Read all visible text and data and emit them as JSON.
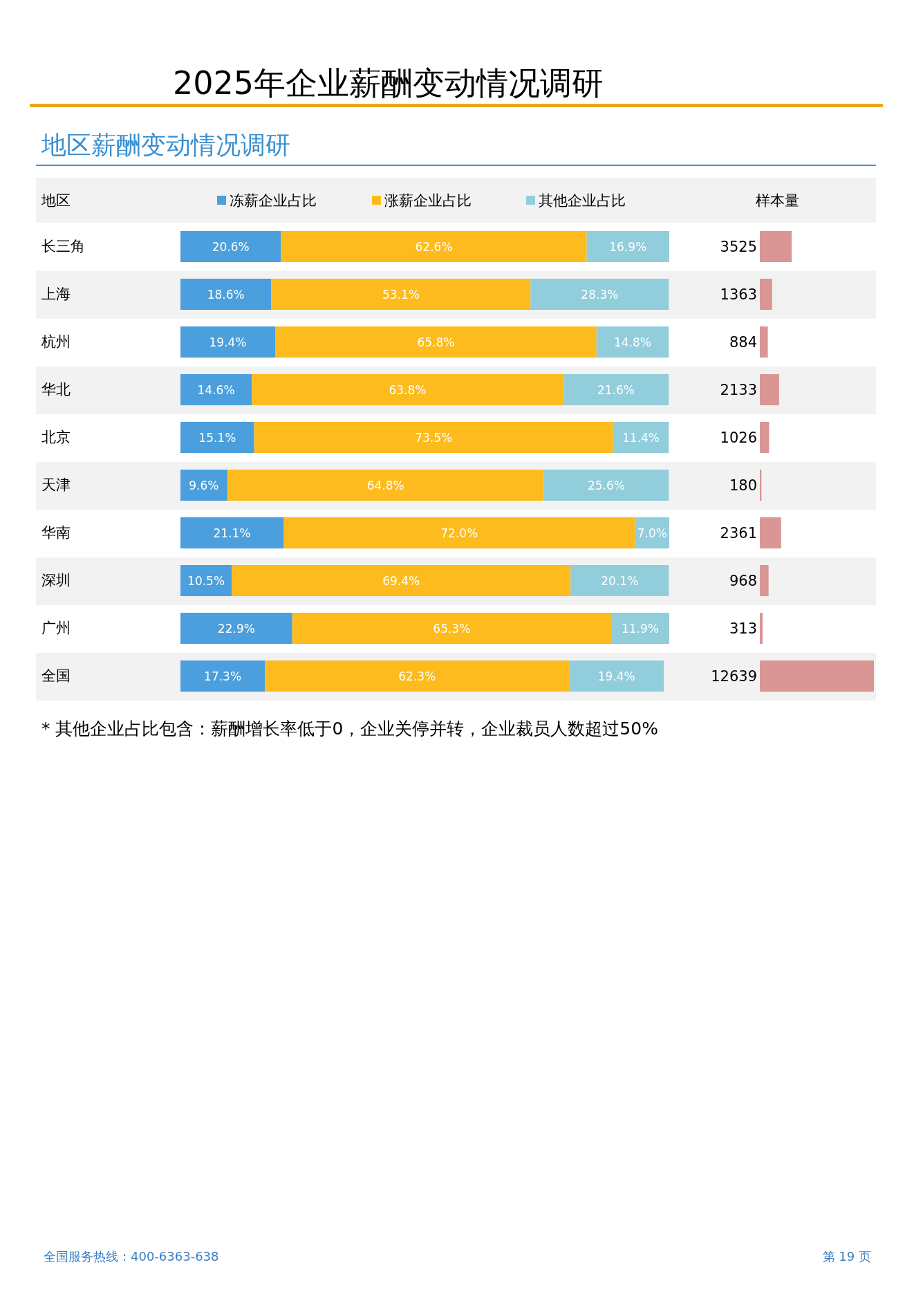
{
  "chart_data": [
    {
      "type": "bar",
      "orientation": "horizontal",
      "stacked": true,
      "title": "2025年企业薪酬变动情况调研",
      "subtitle": "地区薪酬变动情况调研",
      "ylabel": "地区",
      "legend": "top",
      "categories": [
        "长三角",
        "上海",
        "杭州",
        "华北",
        "北京",
        "天津",
        "华南",
        "深圳",
        "广州",
        "全国"
      ],
      "series": [
        {
          "name": "冻薪企业占比",
          "color": "#4a9fdc",
          "values": [
            20.6,
            18.6,
            19.4,
            14.6,
            15.1,
            9.6,
            21.1,
            10.5,
            22.9,
            17.3
          ],
          "value_labels": [
            "20.6%",
            "18.6%",
            "19.4%",
            "14.6%",
            "15.1%",
            "9.6%",
            "21.1%",
            "10.5%",
            "22.9%",
            "17.3%"
          ]
        },
        {
          "name": "涨薪企业占比",
          "color": "#fdbb1e",
          "values": [
            62.6,
            53.1,
            65.8,
            63.8,
            73.5,
            64.8,
            72.0,
            69.4,
            65.3,
            62.3
          ],
          "value_labels": [
            "62.6%",
            "53.1%",
            "65.8%",
            "63.8%",
            "73.5%",
            "64.8%",
            "72.0%",
            "69.4%",
            "65.3%",
            "62.3%"
          ]
        },
        {
          "name": "其他企业占比",
          "color": "#92cddc",
          "values": [
            16.9,
            28.3,
            14.8,
            21.6,
            11.4,
            25.6,
            7.0,
            20.1,
            11.9,
            19.4
          ],
          "value_labels": [
            "16.9%",
            "28.3%",
            "14.8%",
            "21.6%",
            "11.4%",
            "25.6%",
            "7.0%",
            "20.1%",
            "11.9%",
            "19.4%"
          ]
        }
      ],
      "annotations": [
        "* 其他企业占比包含：薪酬增长率低于0，企业关停并转，企业裁员人数超过50%",
        "全国服务热线：400-6363-638",
        "第 19 页"
      ]
    },
    {
      "type": "bar",
      "orientation": "horizontal",
      "title": "样本量",
      "color": "#d99694",
      "data_labels": true,
      "categories": [
        null,
        null,
        null,
        null,
        null,
        null,
        null,
        null,
        null,
        null
      ],
      "values": [
        3525,
        1363,
        884,
        2133,
        1026,
        180,
        2361,
        968,
        313,
        12639
      ]
    }
  ]
}
